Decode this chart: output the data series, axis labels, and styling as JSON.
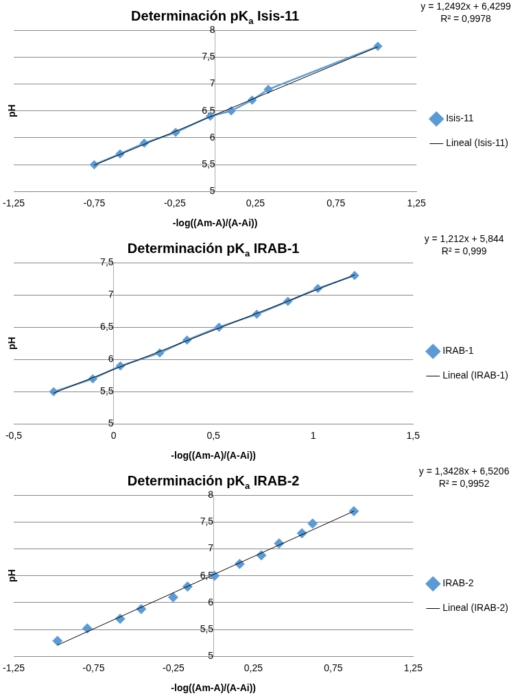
{
  "chart_data": [
    {
      "type": "line",
      "title": "Determinación pK$_{a}$ Isis-11",
      "xlabel": "-log((Am-A)/(A-Ai))",
      "ylabel": "pH",
      "annotations": [
        "y = 1,2492x + 6,4299",
        "R² = 0,9978"
      ],
      "xlim": [
        -1.25,
        1.25
      ],
      "xticks": [
        {
          "value": -1.25,
          "label": "-1,25"
        },
        {
          "value": -0.75,
          "label": "-0,75"
        },
        {
          "value": -0.25,
          "label": "-0,25"
        },
        {
          "value": 0.25,
          "label": "0,25"
        },
        {
          "value": 0.75,
          "label": "0,75"
        },
        {
          "value": 1.25,
          "label": "1,25"
        }
      ],
      "ylim": [
        5,
        8
      ],
      "yticks": [
        5,
        {
          "value": 5.5,
          "label": "5,5"
        },
        6,
        {
          "value": 6.5,
          "label": "6,5"
        },
        7,
        {
          "value": 7.5,
          "label": "7,5"
        },
        8
      ],
      "grid": "y",
      "legend": "right",
      "marker": "diamond",
      "series": [
        {
          "name": "Isis-11",
          "color": "#5b9bd5",
          "x": [
            -0.75,
            -0.59,
            -0.44,
            -0.245,
            -0.03,
            0.1,
            0.23,
            0.33,
            1.01
          ],
          "values": [
            5.5,
            5.7,
            5.9,
            6.1,
            6.4,
            6.5,
            6.7,
            6.9,
            7.7
          ]
        },
        {
          "name": "Lineal (Isis-11)",
          "marker": "none",
          "color": "#000000",
          "x": [
            -0.75,
            1.01
          ],
          "values": [
            5.49,
            7.69
          ]
        }
      ]
    },
    {
      "type": "line",
      "title": "Determinación pK$_{a}$ IRAB-1",
      "xlabel": "-log((Am-A)/(A-Ai))",
      "ylabel": "pH",
      "annotations": [
        "y = 1,212x + 5,844",
        "R² = 0,999"
      ],
      "xlim": [
        -0.5,
        1.5
      ],
      "xticks": [
        {
          "value": -0.5,
          "label": "-0,5"
        },
        0,
        {
          "value": 0.5,
          "label": "0,5"
        },
        1,
        {
          "value": 1.5,
          "label": "1,5"
        }
      ],
      "ylim": [
        5,
        7.5
      ],
      "yticks": [
        5,
        {
          "value": 5.5,
          "label": "5,5"
        },
        6,
        {
          "value": 6.5,
          "label": "6,5"
        },
        7,
        {
          "value": 7.5,
          "label": "7,5"
        }
      ],
      "grid": "y",
      "legend": "right",
      "marker": "diamond",
      "series": [
        {
          "name": "IRAB-1",
          "color": "#5b9bd5",
          "x": [
            -0.3,
            -0.104,
            0.034,
            0.231,
            0.368,
            0.528,
            0.717,
            0.873,
            1.023,
            1.207
          ],
          "values": [
            5.5,
            5.7,
            5.9,
            6.1,
            6.3,
            6.5,
            6.7,
            6.9,
            7.1,
            7.3
          ]
        },
        {
          "name": "Lineal (IRAB-1)",
          "marker": "none",
          "color": "#000000",
          "x": [
            -0.3,
            1.207
          ],
          "values": [
            5.48,
            7.31
          ]
        }
      ]
    },
    {
      "type": "scatter",
      "title": "Determinación pK$_{a}$ IRAB-2",
      "xlabel": "-log((Am-A)/(A-Ai))",
      "ylabel": "pH",
      "annotations": [
        "y = 1,3428x + 6,5206",
        "R² = 0,9952"
      ],
      "xlim": [
        -1.25,
        1.25
      ],
      "xticks": [
        {
          "value": -1.25,
          "label": "-1,25"
        },
        {
          "value": -0.75,
          "label": "-0,75"
        },
        {
          "value": -0.25,
          "label": "-0,25"
        },
        {
          "value": 0.25,
          "label": "0,25"
        },
        {
          "value": 0.75,
          "label": "0,75"
        },
        {
          "value": 1.25,
          "label": "1,25"
        }
      ],
      "ylim": [
        5,
        8
      ],
      "yticks": [
        5,
        {
          "value": 5.5,
          "label": "5,5"
        },
        6,
        {
          "value": 6.5,
          "label": "6,5"
        },
        7,
        {
          "value": 7.5,
          "label": "7,5"
        },
        8
      ],
      "grid": "y",
      "legend": "right",
      "marker": "diamond",
      "series": [
        {
          "name": "IRAB-2",
          "color": "#5b9bd5",
          "x": [
            -0.976,
            -0.79,
            -0.584,
            -0.452,
            -0.252,
            -0.162,
            0.007,
            0.164,
            0.3,
            0.411,
            0.554,
            0.621,
            0.879
          ],
          "values": [
            5.29,
            5.52,
            5.7,
            5.88,
            6.1,
            6.3,
            6.5,
            6.72,
            6.88,
            7.1,
            7.29,
            7.47,
            7.7
          ]
        },
        {
          "name": "Lineal (IRAB-2)",
          "type": "line",
          "marker": "none",
          "color": "#000000",
          "x": [
            -0.976,
            0.879
          ],
          "values": [
            5.21,
            7.7
          ]
        }
      ]
    }
  ]
}
